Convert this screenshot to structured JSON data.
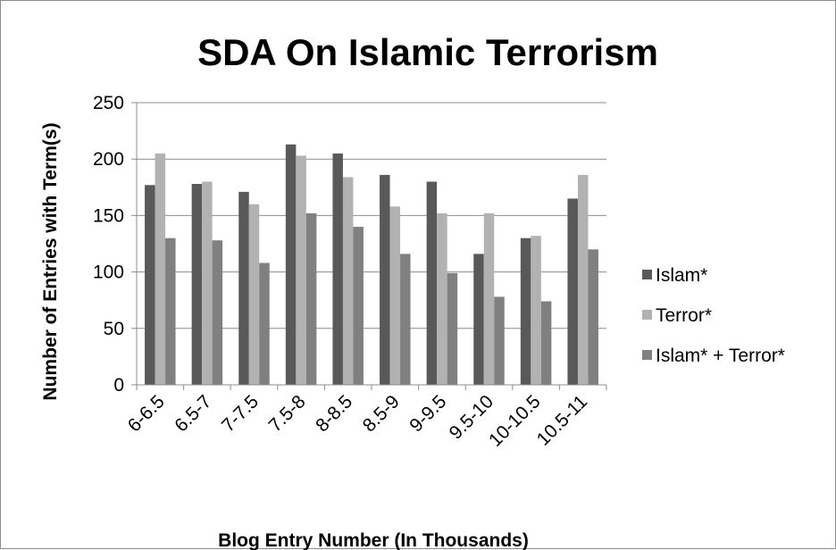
{
  "chart_data": {
    "type": "bar",
    "title": "SDA On Islamic Terrorism",
    "xlabel": "Blog Entry Number (In Thousands)",
    "ylabel": "Number of Entries with Term(s)",
    "ylim": [
      0,
      250
    ],
    "yticks": [
      0,
      50,
      100,
      150,
      200,
      250
    ],
    "grid": true,
    "legend_position": "right",
    "categories": [
      "6-6.5",
      "6.5-7",
      "7-7.5",
      "7.5-8",
      "8-8.5",
      "8.5-9",
      "9-9.5",
      "9.5-10",
      "10-10.5",
      "10.5-11"
    ],
    "series": [
      {
        "name": "Islam*",
        "color": "#595959",
        "values": [
          177,
          178,
          171,
          213,
          205,
          186,
          180,
          116,
          130,
          165
        ]
      },
      {
        "name": "Terror*",
        "color": "#b2b2b2",
        "values": [
          205,
          180,
          160,
          203,
          184,
          158,
          152,
          152,
          132,
          186
        ]
      },
      {
        "name": "Islam* + Terror*",
        "color": "#808080",
        "values": [
          130,
          128,
          108,
          152,
          140,
          116,
          99,
          78,
          74,
          120
        ]
      }
    ]
  }
}
